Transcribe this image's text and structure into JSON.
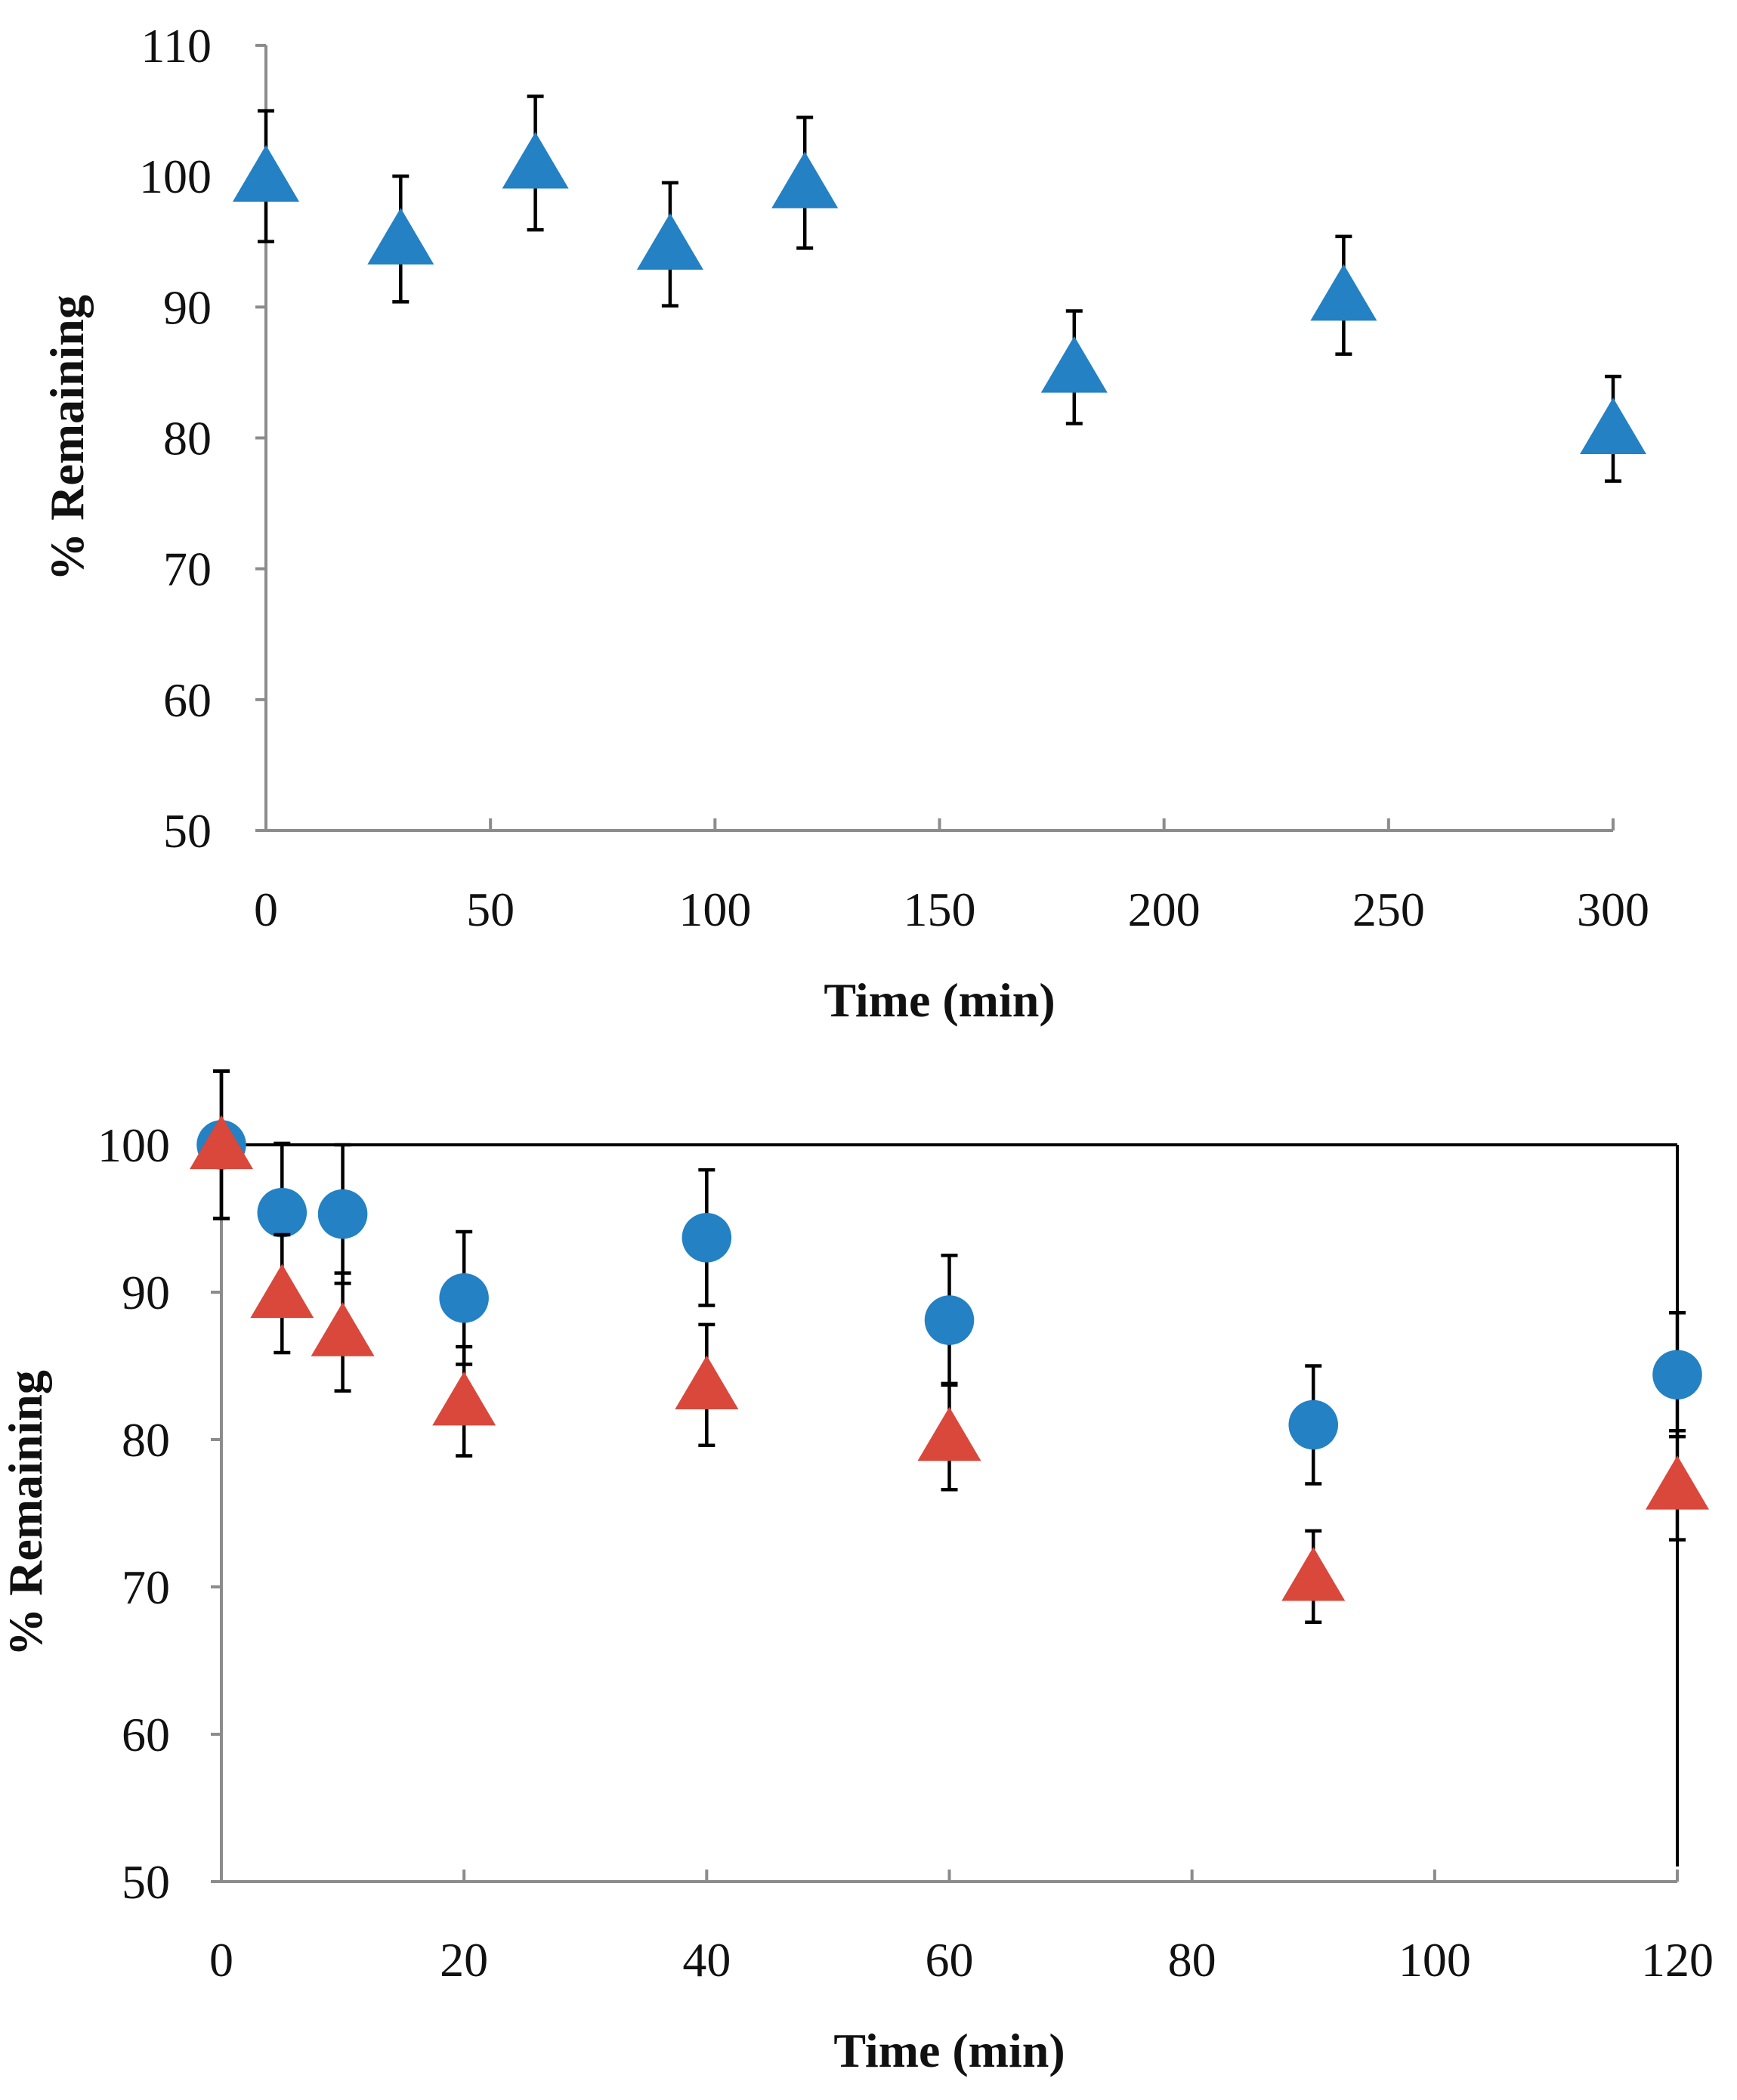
{
  "chart_data": [
    {
      "type": "scatter",
      "title": "",
      "xlabel": "Time (min)",
      "ylabel": "% Remaining",
      "xlim": [
        0,
        300
      ],
      "ylim": [
        50,
        110
      ],
      "xticks": [
        0,
        50,
        100,
        150,
        200,
        250,
        300
      ],
      "yticks": [
        50,
        60,
        70,
        80,
        90,
        100,
        110
      ],
      "grid": false,
      "series": [
        {
          "name": "triangle-blue",
          "marker": "triangle",
          "color": "#2381c4",
          "x": [
            0,
            30,
            60,
            90,
            120,
            180,
            240,
            300
          ],
          "y": [
            100,
            95.2,
            101,
            94.8,
            99.5,
            85.4,
            90.9,
            80.7
          ],
          "err": [
            5.0,
            4.8,
            5.1,
            4.7,
            5.0,
            4.3,
            4.5,
            4.0
          ]
        }
      ]
    },
    {
      "type": "scatter",
      "title": "",
      "xlabel": "Time (min)",
      "ylabel": "% Remaining",
      "xlim": [
        0,
        120
      ],
      "ylim": [
        50,
        100
      ],
      "xticks": [
        0,
        20,
        40,
        60,
        80,
        100,
        120
      ],
      "yticks": [
        50,
        60,
        70,
        80,
        90,
        100
      ],
      "grid": false,
      "series": [
        {
          "name": "circle-blue",
          "marker": "circle",
          "color": "#2381c4",
          "x": [
            0,
            5,
            10,
            20,
            40,
            60,
            90,
            120
          ],
          "y": [
            100,
            95.4,
            95.3,
            89.6,
            93.7,
            88.1,
            81.0,
            84.4
          ],
          "err": [
            5.0,
            4.7,
            4.7,
            4.5,
            4.6,
            4.4,
            4.0,
            4.2
          ]
        },
        {
          "name": "triangle-red",
          "marker": "triangle",
          "color": "#d9483b",
          "x": [
            0,
            5,
            10,
            20,
            40,
            60,
            90,
            120
          ],
          "y": [
            100,
            89.9,
            87.3,
            82.6,
            83.7,
            80.2,
            70.7,
            76.9
          ],
          "err": [
            5.0,
            4.0,
            4.0,
            3.7,
            4.1,
            3.6,
            3.1,
            3.7
          ]
        }
      ]
    }
  ]
}
